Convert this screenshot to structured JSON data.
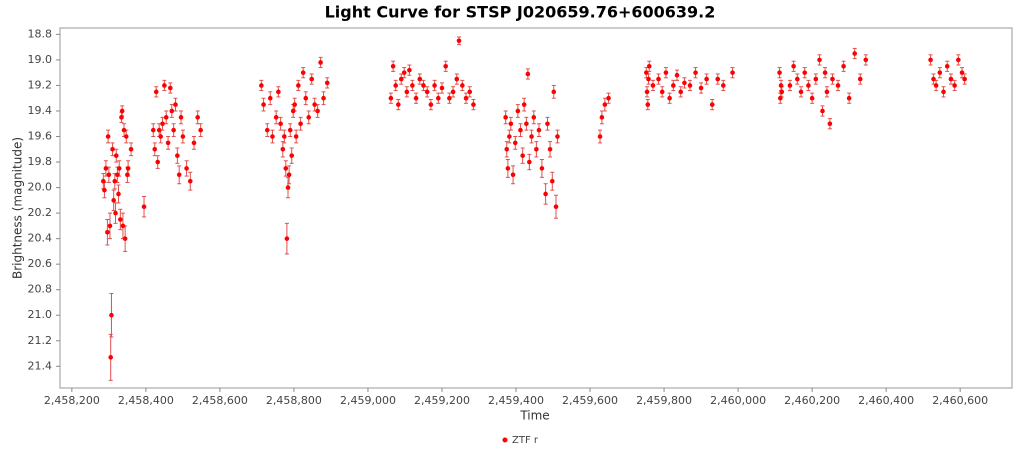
{
  "chart_data": {
    "type": "scatter",
    "title": "Light Curve for STSP J020659.76+600639.2",
    "xlabel": "Time",
    "ylabel": "Brightness (magnitude)",
    "xlim": [
      2458168,
      2460740
    ],
    "ylim": [
      18.75,
      21.57
    ],
    "yinverted": true,
    "grid": false,
    "legend": "bottom",
    "xticks": [
      {
        "value": 2458200,
        "label": "2,458,200"
      },
      {
        "value": 2458400,
        "label": "2,458,400"
      },
      {
        "value": 2458600,
        "label": "2,458,600"
      },
      {
        "value": 2458800,
        "label": "2,458,800"
      },
      {
        "value": 2459000,
        "label": "2,459,000"
      },
      {
        "value": 2459200,
        "label": "2,459,200"
      },
      {
        "value": 2459400,
        "label": "2,459,400"
      },
      {
        "value": 2459600,
        "label": "2,459,600"
      },
      {
        "value": 2459800,
        "label": "2,459,800"
      },
      {
        "value": 2460000,
        "label": "2,460,000"
      },
      {
        "value": 2460200,
        "label": "2,460,200"
      },
      {
        "value": 2460400,
        "label": "2,460,400"
      },
      {
        "value": 2460600,
        "label": "2,460,600"
      }
    ],
    "yticks": [
      18.8,
      {
        "value": 19.0,
        "label": "19.0"
      },
      19.2,
      19.4,
      19.6,
      19.8,
      {
        "value": 20.0,
        "label": "20.0"
      },
      20.2,
      20.4,
      20.6,
      20.8,
      {
        "value": 21.0,
        "label": "21.0"
      },
      21.2,
      21.4
    ],
    "series": [
      {
        "name": "ZTF r",
        "color": "#ff0000",
        "errcolor": "#e05050",
        "x": [
          2458285,
          2458288,
          2458292,
          2458296,
          2458298,
          2458300,
          2458303,
          2458305,
          2458307,
          2458310,
          2458313,
          2458316,
          2458318,
          2458320,
          2458323,
          2458326,
          2458328,
          2458331,
          2458334,
          2458336,
          2458338,
          2458341,
          2458344,
          2458347,
          2458350,
          2458352,
          2458360,
          2458395,
          2458420,
          2458424,
          2458428,
          2458432,
          2458436,
          2458440,
          2458445,
          2458450,
          2458455,
          2458460,
          2458466,
          2458470,
          2458475,
          2458480,
          2458485,
          2458490,
          2458495,
          2458500,
          2458510,
          2458520,
          2458530,
          2458540,
          2458548,
          2458712,
          2458718,
          2458728,
          2458736,
          2458742,
          2458752,
          2458758,
          2458764,
          2458770,
          2458774,
          2458778,
          2458781,
          2458784,
          2458787,
          2458790,
          2458794,
          2458798,
          2458802,
          2458806,
          2458812,
          2458818,
          2458825,
          2458832,
          2458840,
          2458848,
          2458856,
          2458864,
          2458872,
          2458880,
          2458890,
          2459062,
          2459068,
          2459075,
          2459082,
          2459090,
          2459098,
          2459105,
          2459112,
          2459120,
          2459130,
          2459140,
          2459150,
          2459160,
          2459170,
          2459180,
          2459190,
          2459200,
          2459210,
          2459220,
          2459230,
          2459240,
          2459246,
          2459255,
          2459265,
          2459275,
          2459285,
          2459372,
          2459375,
          2459378,
          2459382,
          2459386,
          2459392,
          2459398,
          2459405,
          2459412,
          2459418,
          2459422,
          2459428,
          2459432,
          2459436,
          2459442,
          2459448,
          2459455,
          2459462,
          2459470,
          2459480,
          2459485,
          2459492,
          2459498,
          2459502,
          2459508,
          2459512,
          2459627,
          2459632,
          2459640,
          2459650,
          2459752,
          2459754,
          2459756,
          2459758,
          2459760,
          2459770,
          2459785,
          2459795,
          2459805,
          2459815,
          2459825,
          2459835,
          2459845,
          2459855,
          2459870,
          2459885,
          2459900,
          2459915,
          2459930,
          2459945,
          2459960,
          2459985,
          2460112,
          2460114,
          2460116,
          2460118,
          2460140,
          2460150,
          2460160,
          2460170,
          2460180,
          2460190,
          2460200,
          2460210,
          2460220,
          2460228,
          2460235,
          2460240,
          2460248,
          2460255,
          2460270,
          2460285,
          2460300,
          2460315,
          2460330,
          2460345,
          2460520,
          2460528,
          2460535,
          2460545,
          2460555,
          2460565,
          2460575,
          2460585,
          2460595,
          2460605,
          2460612
        ],
        "values": [
          19.95,
          20.02,
          19.85,
          20.35,
          19.6,
          19.9,
          20.3,
          21.33,
          21.0,
          19.7,
          20.1,
          19.95,
          20.2,
          19.75,
          19.9,
          20.05,
          19.85,
          20.25,
          19.45,
          19.4,
          20.3,
          19.55,
          20.4,
          19.6,
          19.9,
          19.85,
          19.7,
          20.15,
          19.55,
          19.7,
          19.25,
          19.8,
          19.55,
          19.6,
          19.5,
          19.2,
          19.45,
          19.65,
          19.22,
          19.4,
          19.55,
          19.35,
          19.75,
          19.9,
          19.45,
          19.6,
          19.85,
          19.95,
          19.65,
          19.45,
          19.55,
          19.2,
          19.35,
          19.55,
          19.3,
          19.6,
          19.45,
          19.25,
          19.5,
          19.7,
          19.6,
          19.85,
          20.4,
          20.0,
          19.9,
          19.55,
          19.75,
          19.4,
          19.35,
          19.6,
          19.2,
          19.5,
          19.1,
          19.3,
          19.45,
          19.15,
          19.35,
          19.4,
          19.02,
          19.3,
          19.18,
          19.3,
          19.05,
          19.2,
          19.35,
          19.15,
          19.1,
          19.25,
          19.08,
          19.2,
          19.3,
          19.15,
          19.2,
          19.25,
          19.35,
          19.2,
          19.3,
          19.22,
          19.05,
          19.3,
          19.25,
          19.15,
          18.85,
          19.2,
          19.3,
          19.25,
          19.35,
          19.45,
          19.7,
          19.85,
          19.6,
          19.5,
          19.9,
          19.65,
          19.4,
          19.55,
          19.75,
          19.35,
          19.5,
          19.11,
          19.8,
          19.6,
          19.45,
          19.7,
          19.55,
          19.85,
          20.05,
          19.5,
          19.7,
          19.95,
          19.25,
          20.15,
          19.6,
          19.6,
          19.45,
          19.35,
          19.3,
          19.1,
          19.25,
          19.35,
          19.15,
          19.05,
          19.2,
          19.15,
          19.25,
          19.1,
          19.3,
          19.2,
          19.12,
          19.25,
          19.18,
          19.2,
          19.1,
          19.22,
          19.15,
          19.35,
          19.15,
          19.2,
          19.1,
          19.1,
          19.3,
          19.2,
          19.25,
          19.2,
          19.05,
          19.15,
          19.25,
          19.1,
          19.2,
          19.3,
          19.15,
          19.0,
          19.4,
          19.1,
          19.25,
          19.5,
          19.15,
          19.2,
          19.05,
          19.3,
          18.95,
          19.15,
          19.0,
          19.0,
          19.15,
          19.2,
          19.1,
          19.25,
          19.05,
          19.15,
          19.2,
          19.0,
          19.1,
          19.15
        ],
        "errors": [
          0.06,
          0.06,
          0.06,
          0.1,
          0.05,
          0.06,
          0.1,
          0.18,
          0.17,
          0.05,
          0.08,
          0.06,
          0.08,
          0.05,
          0.06,
          0.07,
          0.06,
          0.08,
          0.04,
          0.04,
          0.1,
          0.05,
          0.1,
          0.05,
          0.06,
          0.06,
          0.05,
          0.08,
          0.05,
          0.05,
          0.04,
          0.05,
          0.05,
          0.05,
          0.05,
          0.04,
          0.05,
          0.05,
          0.04,
          0.05,
          0.05,
          0.05,
          0.06,
          0.07,
          0.05,
          0.05,
          0.06,
          0.07,
          0.05,
          0.05,
          0.05,
          0.04,
          0.05,
          0.05,
          0.05,
          0.05,
          0.05,
          0.04,
          0.05,
          0.06,
          0.05,
          0.06,
          0.12,
          0.08,
          0.07,
          0.05,
          0.06,
          0.05,
          0.05,
          0.05,
          0.04,
          0.05,
          0.04,
          0.05,
          0.05,
          0.04,
          0.05,
          0.05,
          0.04,
          0.05,
          0.04,
          0.04,
          0.04,
          0.04,
          0.04,
          0.04,
          0.04,
          0.04,
          0.04,
          0.04,
          0.04,
          0.04,
          0.04,
          0.04,
          0.04,
          0.04,
          0.04,
          0.04,
          0.04,
          0.04,
          0.04,
          0.04,
          0.03,
          0.04,
          0.04,
          0.04,
          0.04,
          0.05,
          0.06,
          0.07,
          0.05,
          0.05,
          0.07,
          0.05,
          0.05,
          0.05,
          0.06,
          0.05,
          0.05,
          0.04,
          0.06,
          0.05,
          0.05,
          0.06,
          0.05,
          0.07,
          0.08,
          0.05,
          0.06,
          0.07,
          0.05,
          0.09,
          0.05,
          0.05,
          0.05,
          0.05,
          0.04,
          0.04,
          0.04,
          0.04,
          0.04,
          0.04,
          0.04,
          0.04,
          0.04,
          0.04,
          0.04,
          0.04,
          0.04,
          0.04,
          0.04,
          0.04,
          0.04,
          0.04,
          0.04,
          0.04,
          0.04,
          0.04,
          0.04,
          0.04,
          0.04,
          0.04,
          0.04,
          0.04,
          0.04,
          0.04,
          0.04,
          0.04,
          0.04,
          0.04,
          0.04,
          0.04,
          0.04,
          0.04,
          0.04,
          0.04,
          0.04,
          0.04,
          0.04,
          0.04,
          0.04,
          0.04,
          0.04,
          0.04,
          0.04,
          0.04,
          0.04,
          0.04,
          0.04,
          0.04,
          0.04,
          0.04,
          0.04,
          0.04
        ]
      }
    ]
  }
}
